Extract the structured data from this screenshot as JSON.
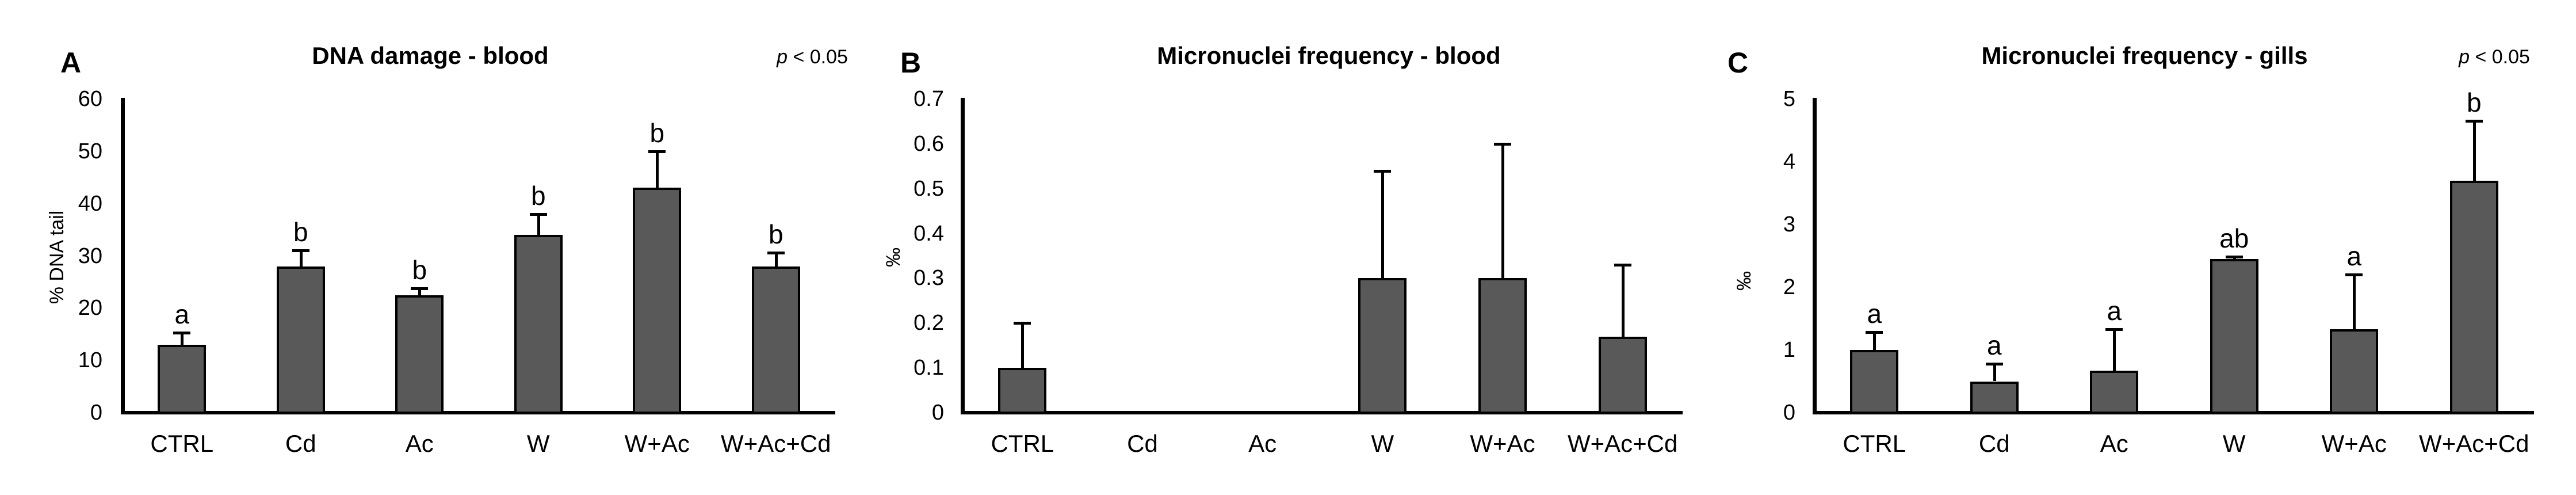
{
  "figure": {
    "background": "#ffffff",
    "axis_color": "#000000",
    "bar_fill": "#595959"
  },
  "chart_data": [
    {
      "type": "bar",
      "panel_label": "A",
      "title": "DNA damage - blood",
      "p_note": {
        "symbol": "p",
        "rest": " < 0.05"
      },
      "ylabel": "% DNA tail",
      "categories": [
        "CTRL",
        "Cd",
        "Ac",
        "W",
        "W+Ac",
        "W+Ac+Cd"
      ],
      "values": [
        13,
        28,
        22.5,
        34,
        43,
        28
      ],
      "errors_up": [
        2.3,
        3,
        1.3,
        4,
        7,
        2.6
      ],
      "sig_letters": [
        "a",
        "b",
        "b",
        "b",
        "b",
        "b"
      ],
      "ylim": [
        0,
        60
      ],
      "ytick_labels": [
        "0",
        "10",
        "20",
        "30",
        "40",
        "50",
        "60"
      ],
      "grid": false,
      "legend": "none",
      "bar_color": "#595959"
    },
    {
      "type": "bar",
      "panel_label": "B",
      "title": "Micronuclei frequency - blood",
      "p_note": {
        "symbol": "",
        "rest": ""
      },
      "ylabel": "‰",
      "categories": [
        "CTRL",
        "Cd",
        "Ac",
        "W",
        "W+Ac",
        "W+Ac+Cd"
      ],
      "values": [
        0.1,
        0,
        0,
        0.3,
        0.3,
        0.17
      ],
      "errors_up": [
        0.1,
        0,
        0,
        0.24,
        0.3,
        0.16
      ],
      "sig_letters": [
        "",
        "",
        "",
        "",
        "",
        ""
      ],
      "ylim": [
        0,
        0.7
      ],
      "ytick_labels": [
        "0",
        "0.1",
        "0.2",
        "0.3",
        "0.4",
        "0.5",
        "0.6",
        "0.7"
      ],
      "grid": false,
      "legend": "none",
      "bar_color": "#595959"
    },
    {
      "type": "bar",
      "panel_label": "C",
      "title": "Micronuclei frequency - gills",
      "p_note": {
        "symbol": "p",
        "rest": " < 0.05"
      },
      "ylabel": "‰",
      "categories": [
        "CTRL",
        "Cd",
        "Ac",
        "W",
        "W+Ac",
        "W+Ac+Cd"
      ],
      "values": [
        1.0,
        0.5,
        0.67,
        2.45,
        1.33,
        3.7
      ],
      "errors_up": [
        0.28,
        0.28,
        0.66,
        0.04,
        0.87,
        0.95
      ],
      "sig_letters": [
        "a",
        "a",
        "a",
        "ab",
        "a",
        "b"
      ],
      "ylim": [
        0,
        5
      ],
      "ytick_labels": [
        "0",
        "1",
        "2",
        "3",
        "4",
        "5"
      ],
      "grid": false,
      "legend": "none",
      "bar_color": "#595959"
    }
  ]
}
